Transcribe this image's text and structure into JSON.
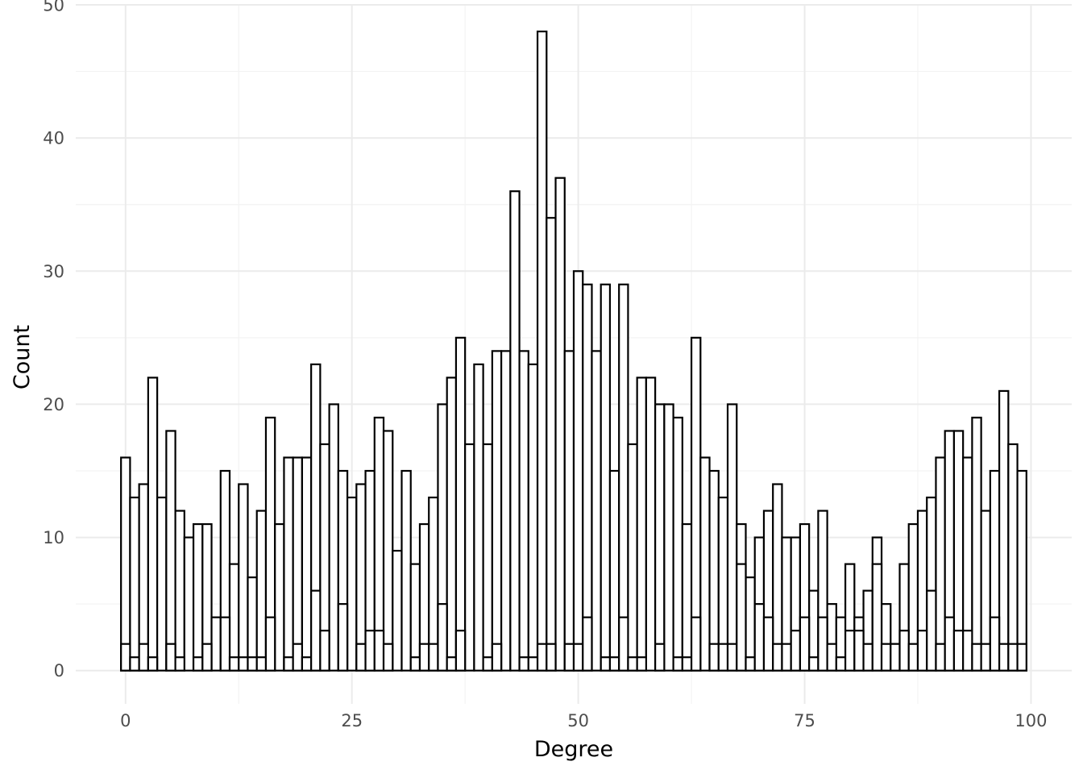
{
  "chart_data": {
    "type": "bar",
    "xlabel": "Degree",
    "ylabel": "Count",
    "xlim": [
      -5.5,
      104.5
    ],
    "ylim": [
      -2.5,
      50
    ],
    "x_ticks": [
      0,
      25,
      50,
      75,
      100
    ],
    "y_ticks": [
      0,
      10,
      20,
      30,
      40,
      50
    ],
    "grid": true,
    "bar_fill": "#ffffff",
    "bar_outline": "#000000",
    "series": [
      {
        "x": [
          0,
          1,
          2,
          3,
          4,
          5,
          6,
          7,
          8,
          9,
          10,
          11,
          12,
          13,
          14,
          15,
          16,
          17,
          18,
          19,
          20,
          21,
          22,
          23,
          24,
          25,
          26,
          27,
          28,
          29,
          30,
          31,
          32,
          33,
          34,
          35,
          36,
          37,
          38,
          39,
          40,
          41,
          42,
          43,
          44,
          45,
          46,
          47,
          48,
          49,
          50,
          51,
          52,
          53,
          54,
          55,
          56,
          57,
          58,
          59,
          60,
          61,
          62,
          63,
          64,
          65,
          66,
          67,
          68,
          69,
          70,
          71,
          72,
          73,
          74,
          75,
          76,
          77,
          78,
          79,
          80,
          81,
          82,
          83,
          84,
          85,
          86,
          87,
          88,
          89,
          90,
          91,
          92,
          93,
          94,
          95,
          96,
          97,
          98,
          99
        ],
        "values": [
          16,
          13,
          14,
          22,
          13,
          18,
          12,
          10,
          11,
          11,
          4,
          15,
          8,
          14,
          7,
          12,
          19,
          11,
          16,
          16,
          16,
          23,
          17,
          20,
          15,
          13,
          14,
          15,
          19,
          18,
          9,
          15,
          8,
          11,
          13,
          20,
          22,
          25,
          17,
          23,
          17,
          24,
          24,
          36,
          24,
          23,
          48,
          34,
          37,
          24,
          30,
          29,
          24,
          29,
          15,
          29,
          17,
          22,
          22,
          20,
          20,
          19,
          11,
          25,
          16,
          15,
          13,
          20,
          11,
          7,
          10,
          12,
          14,
          10,
          10,
          11,
          6,
          12,
          5,
          4,
          8,
          4,
          6,
          10,
          5,
          2,
          8,
          11,
          12,
          13,
          16,
          18,
          18,
          16,
          19,
          12,
          15,
          21,
          17,
          15
        ]
      },
      {
        "x": [
          0,
          1,
          2,
          3,
          4,
          5,
          6,
          7,
          8,
          9,
          10,
          11,
          12,
          13,
          14,
          15,
          16,
          17,
          18,
          19,
          20,
          21,
          22,
          23,
          24,
          25,
          26,
          27,
          28,
          29,
          30,
          31,
          32,
          33,
          34,
          35,
          36,
          37,
          38,
          39,
          40,
          41,
          42,
          43,
          44,
          45,
          46,
          47,
          48,
          49,
          50,
          51,
          52,
          53,
          54,
          55,
          56,
          57,
          58,
          59,
          60,
          61,
          62,
          63,
          64,
          65,
          66,
          67,
          68,
          69,
          70,
          71,
          72,
          73,
          74,
          75,
          76,
          77,
          78,
          79,
          80,
          81,
          82,
          83,
          84,
          85,
          86,
          87,
          88,
          89,
          90,
          91,
          92,
          93,
          94,
          95,
          96,
          97,
          98,
          99
        ],
        "values": [
          2,
          1,
          2,
          1,
          0,
          2,
          1,
          0,
          1,
          2,
          0,
          4,
          1,
          1,
          1,
          1,
          4,
          0,
          1,
          2,
          1,
          6,
          3,
          0,
          5,
          0,
          2,
          3,
          3,
          2,
          0,
          0,
          1,
          2,
          2,
          5,
          1,
          3,
          0,
          0,
          1,
          2,
          0,
          0,
          1,
          1,
          2,
          2,
          0,
          2,
          2,
          4,
          0,
          1,
          1,
          4,
          1,
          1,
          0,
          2,
          0,
          1,
          1,
          4,
          0,
          2,
          2,
          2,
          8,
          1,
          5,
          4,
          2,
          2,
          3,
          4,
          1,
          4,
          2,
          1,
          3,
          3,
          2,
          8,
          2,
          2,
          3,
          2,
          3,
          6,
          2,
          4,
          3,
          3,
          2,
          2,
          4,
          2,
          2,
          2
        ]
      }
    ]
  }
}
